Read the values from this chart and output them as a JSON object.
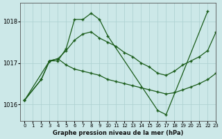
{
  "title": "Graphe pression niveau de la mer (hPa)",
  "bg_color": "#cce8e8",
  "grid_color": "#aacfcf",
  "line_color": "#1a5c1a",
  "xlim": [
    -0.5,
    23
  ],
  "ylim": [
    1015.6,
    1018.45
  ],
  "yticks": [
    1016,
    1017,
    1018
  ],
  "xticks": [
    0,
    1,
    2,
    3,
    4,
    5,
    6,
    7,
    8,
    9,
    10,
    11,
    12,
    13,
    14,
    15,
    16,
    17,
    18,
    19,
    20,
    21,
    22,
    23
  ],
  "series": [
    [
      1016.1,
      null,
      null,
      1017.05,
      1017.05,
      1017.35,
      1018.05,
      1018.05,
      1018.2,
      1018.05,
      1017.65,
      null,
      null,
      null,
      null,
      null,
      1015.85,
      1015.75,
      null,
      null,
      null,
      null,
      1018.25,
      null
    ],
    [
      1016.1,
      null,
      1016.6,
      1017.05,
      1017.1,
      1017.3,
      1017.55,
      1017.7,
      1017.75,
      1017.6,
      1017.5,
      1017.4,
      1017.25,
      1017.15,
      1017.0,
      1016.9,
      1016.75,
      1016.7,
      1016.8,
      1016.95,
      1017.05,
      1017.15,
      1017.3,
      1017.75
    ],
    [
      1016.1,
      null,
      1016.6,
      1017.05,
      1017.1,
      1016.95,
      1016.85,
      1016.8,
      1016.75,
      1016.7,
      1016.6,
      1016.55,
      1016.5,
      1016.45,
      1016.4,
      1016.35,
      1016.3,
      1016.25,
      1016.28,
      1016.35,
      1016.42,
      1016.5,
      1016.6,
      1016.75
    ]
  ],
  "series1_x": [
    0,
    3,
    4,
    5,
    6,
    7,
    8,
    9,
    10,
    16,
    17,
    22
  ],
  "series1_y": [
    1016.1,
    1017.05,
    1017.05,
    1017.35,
    1018.05,
    1018.05,
    1018.2,
    1018.05,
    1017.65,
    1015.85,
    1015.75,
    1018.25
  ],
  "series2_x": [
    0,
    2,
    3,
    4,
    5,
    6,
    7,
    8,
    9,
    10,
    11,
    12,
    13,
    14,
    15,
    16,
    17,
    18,
    19,
    20,
    21,
    22,
    23
  ],
  "series2_y": [
    1016.1,
    1016.6,
    1017.05,
    1017.1,
    1017.3,
    1017.55,
    1017.7,
    1017.75,
    1017.6,
    1017.5,
    1017.4,
    1017.25,
    1017.15,
    1017.0,
    1016.9,
    1016.75,
    1016.7,
    1016.8,
    1016.95,
    1017.05,
    1017.15,
    1017.3,
    1017.75
  ],
  "series3_x": [
    0,
    2,
    3,
    4,
    5,
    6,
    7,
    8,
    9,
    10,
    11,
    12,
    13,
    14,
    15,
    16,
    17,
    18,
    19,
    20,
    21,
    22,
    23
  ],
  "series3_y": [
    1016.1,
    1016.6,
    1017.05,
    1017.1,
    1016.95,
    1016.85,
    1016.8,
    1016.75,
    1016.7,
    1016.6,
    1016.55,
    1016.5,
    1016.45,
    1016.4,
    1016.35,
    1016.3,
    1016.25,
    1016.28,
    1016.35,
    1016.42,
    1016.5,
    1016.6,
    1016.75
  ]
}
